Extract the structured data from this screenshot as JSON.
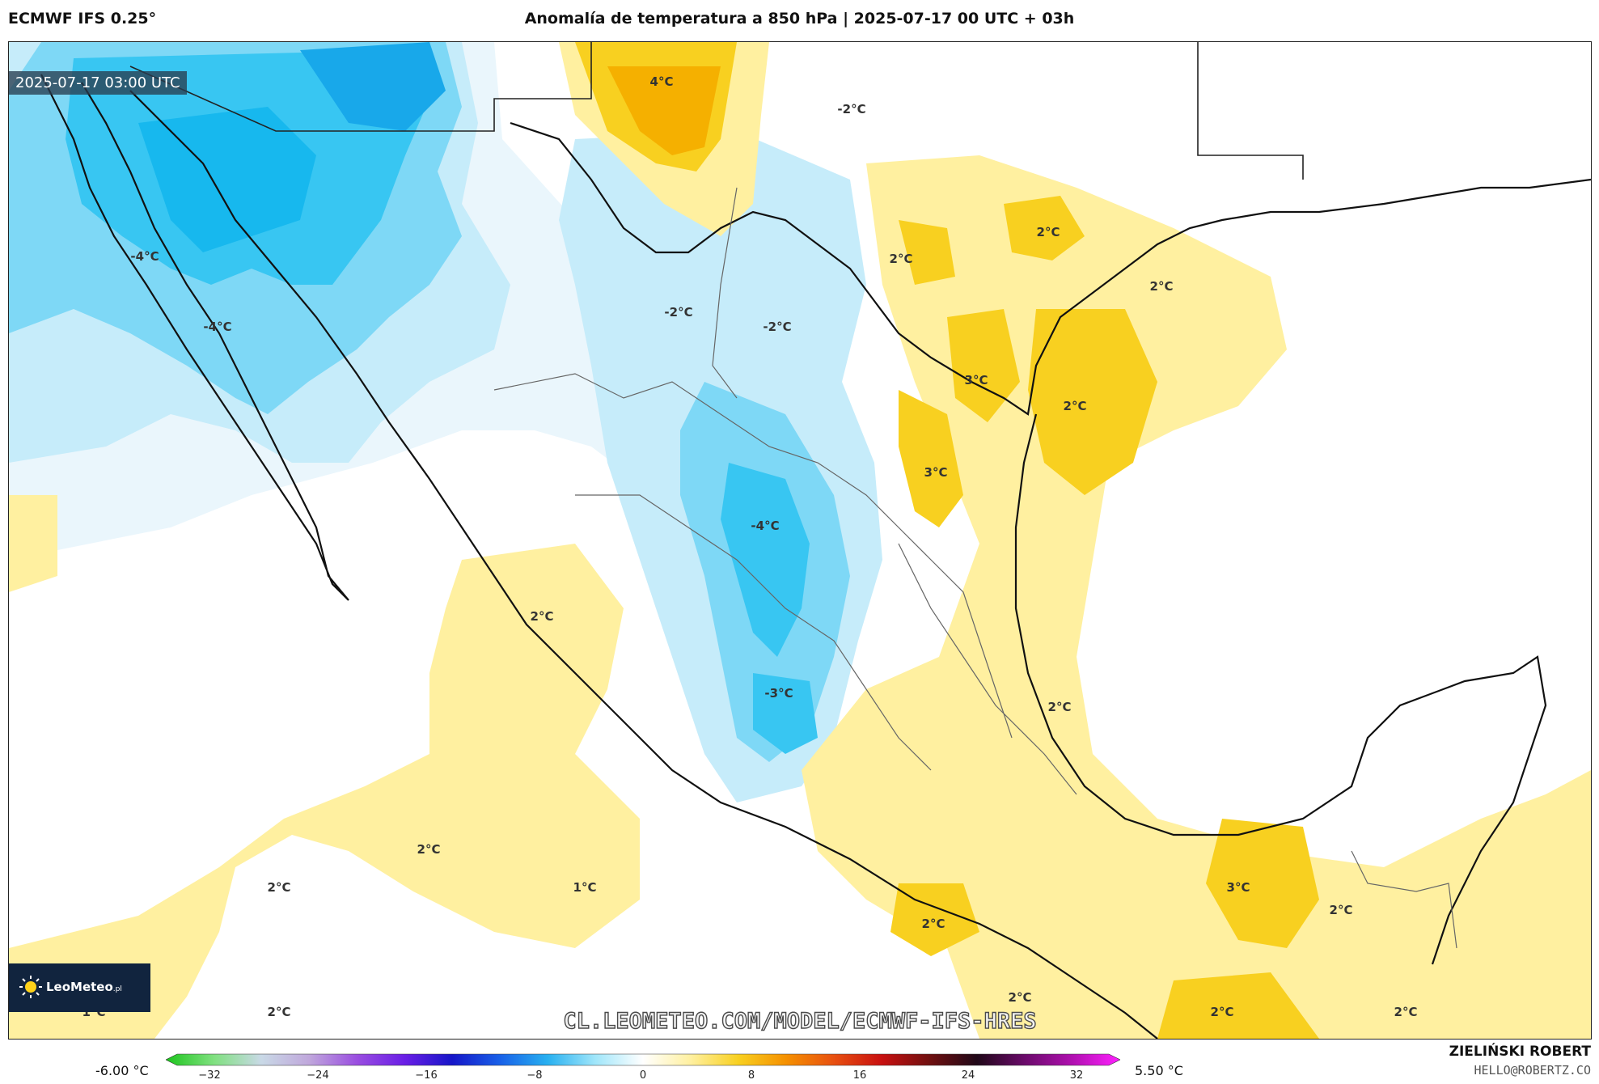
{
  "header": {
    "model": "ECMWF IFS 0.25°",
    "title": "Anomalía de temperatura a 850 hPa | 2025-07-17 00 UTC + 03h"
  },
  "map": {
    "valid_time": "2025-07-17 03:00 UTC",
    "watermark": "CL.LEOMETEO.COM/MODEL/ECMWF-IFS-HRES",
    "logo": {
      "text": "LeoMeteo",
      "suffix": ".pl"
    },
    "labels": [
      {
        "text": "4°C"
      },
      {
        "text": "-2°C"
      },
      {
        "text": "-4°C"
      },
      {
        "text": "-4°C"
      },
      {
        "text": "-2°C"
      },
      {
        "text": "-2°C"
      },
      {
        "text": "2°C"
      },
      {
        "text": "2°C"
      },
      {
        "text": "2°C"
      },
      {
        "text": "3°C"
      },
      {
        "text": "2°C"
      },
      {
        "text": "3°C"
      },
      {
        "text": "-4°C"
      },
      {
        "text": "2°C"
      },
      {
        "text": "-3°C"
      },
      {
        "text": "2°C"
      },
      {
        "text": "2°C"
      },
      {
        "text": "2°C"
      },
      {
        "text": "1°C"
      },
      {
        "text": "2°C"
      },
      {
        "text": "3°C"
      },
      {
        "text": "2°C"
      },
      {
        "text": "2°C"
      },
      {
        "text": "2°C"
      },
      {
        "text": "1°C"
      },
      {
        "text": "2°C"
      },
      {
        "text": "2°C"
      }
    ]
  },
  "colorbar": {
    "min_label": "-6.00 °C",
    "max_label": "5.50 °C",
    "ticks": [
      "−32",
      "−24",
      "−16",
      "−8",
      "0",
      "8",
      "16",
      "24",
      "32"
    ],
    "range": [
      -36,
      36
    ],
    "colors": [
      "#1cc51c",
      "#7fe07f",
      "#c9d9e6",
      "#c0a8dc",
      "#9a4ee0",
      "#6a1ee6",
      "#1616c8",
      "#1860e8",
      "#28b0f0",
      "#a0e6fa",
      "#ffffff",
      "#fff0a0",
      "#f8d020",
      "#f59000",
      "#e85010",
      "#c81010",
      "#701010",
      "#200818",
      "#6a0a6a",
      "#b010b0",
      "#ff20ff"
    ]
  },
  "footer": {
    "author": "ZIELIŃSKI ROBERT",
    "email": "HELLO@ROBERTZ.CO"
  }
}
